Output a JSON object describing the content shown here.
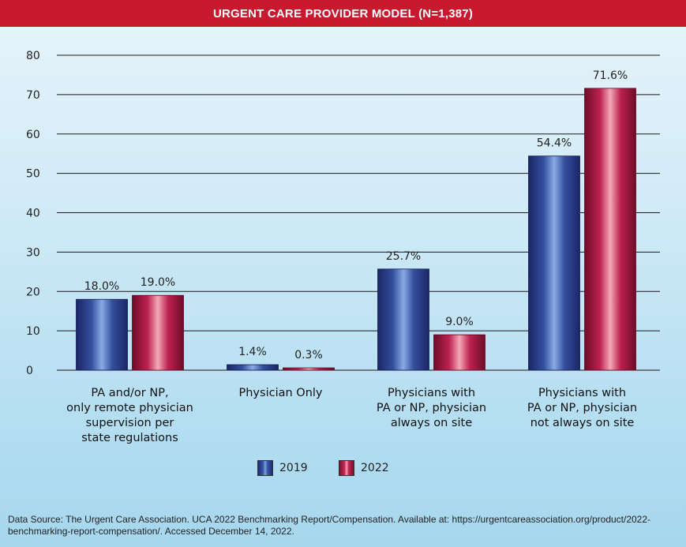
{
  "title": "URGENT CARE PROVIDER MODEL (N=1,387)",
  "chart_data": {
    "type": "bar",
    "title": "URGENT CARE PROVIDER MODEL (N=1,387)",
    "categories": [
      [
        "PA and/or NP,",
        "only remote physician",
        "supervision per",
        "state regulations"
      ],
      [
        "Physician Only"
      ],
      [
        "Physicians with",
        "PA or NP, physician",
        "always on site"
      ],
      [
        "Physicians with",
        "PA or NP, physician",
        "not always on site"
      ]
    ],
    "series": [
      {
        "name": "2019",
        "values": [
          18.0,
          1.4,
          25.7,
          54.4
        ],
        "labels": [
          "18.0%",
          "1.4%",
          "25.7%",
          "54.4%"
        ]
      },
      {
        "name": "2022",
        "values": [
          19.0,
          0.3,
          9.0,
          71.6
        ],
        "labels": [
          "19.0%",
          "0.3%",
          "9.0%",
          "71.6%"
        ]
      }
    ],
    "ylim": [
      0,
      80
    ],
    "yticks": [
      "0",
      "10",
      "20",
      "30",
      "40",
      "50",
      "60",
      "70",
      "80"
    ],
    "grid": true,
    "legend_position": "bottom-center"
  },
  "colors": {
    "title_bar": "#c8192e",
    "series_2019": "#2b3f8c",
    "series_2022": "#b11a42"
  },
  "legend": {
    "items": [
      {
        "label": "2019"
      },
      {
        "label": "2022"
      }
    ]
  },
  "source_text": "Data Source: The Urgent Care Association. UCA 2022 Benchmarking Report/Compensation. Available at: https://urgentcareassociation.org/product/2022-benchmarking-report-compensation/. Accessed December 14, 2022."
}
